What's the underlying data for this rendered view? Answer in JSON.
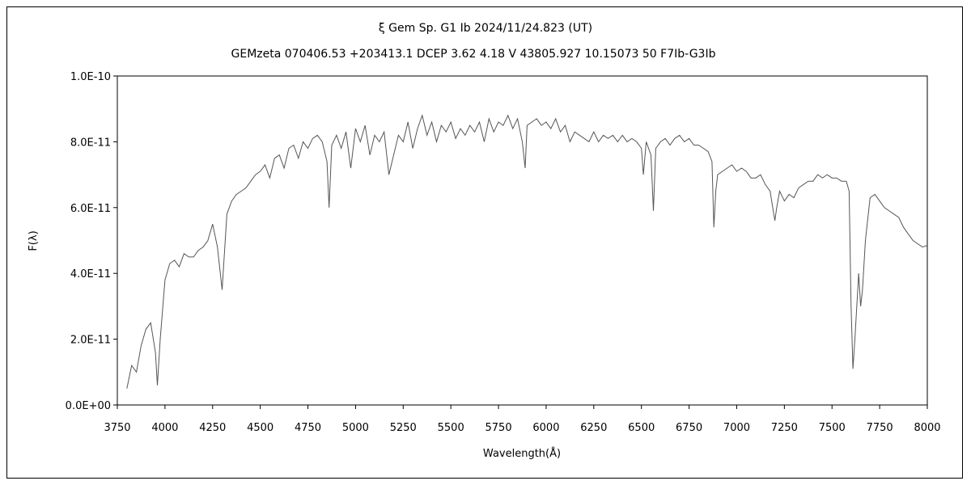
{
  "chart_data": {
    "type": "line",
    "title": "ξ  Gem    Sp. G1 Ib    2024/11/24.823 (UT)",
    "subtitle": "GEMzeta 070406.53 +203413.1  DCEP 3.62  4.18  V  43805.927  10.15073  50  F7Ib-G3Ib",
    "xlabel": "Wavelength(Å)",
    "ylabel": "F(λ)",
    "xlim": [
      3750,
      8000
    ],
    "ylim": [
      0,
      1e-10
    ],
    "x_ticks": [
      "3750",
      "4000",
      "4250",
      "4500",
      "4750",
      "5000",
      "5250",
      "5500",
      "5750",
      "6000",
      "6250",
      "6500",
      "6750",
      "7000",
      "7250",
      "7500",
      "7750",
      "8000"
    ],
    "y_ticks": [
      "0.0E+00",
      "2.0E-11",
      "4.0E-11",
      "6.0E-11",
      "8.0E-11",
      "1.0E-10"
    ],
    "grid": false,
    "line_color": "#555555",
    "x": [
      3800,
      3825,
      3850,
      3875,
      3900,
      3925,
      3950,
      3960,
      3975,
      4000,
      4025,
      4050,
      4075,
      4100,
      4125,
      4150,
      4175,
      4200,
      4225,
      4250,
      4275,
      4300,
      4325,
      4350,
      4375,
      4400,
      4425,
      4450,
      4475,
      4500,
      4525,
      4550,
      4575,
      4600,
      4625,
      4650,
      4675,
      4700,
      4725,
      4750,
      4775,
      4800,
      4825,
      4850,
      4861,
      4875,
      4900,
      4925,
      4950,
      4975,
      5000,
      5025,
      5050,
      5075,
      5100,
      5125,
      5150,
      5175,
      5200,
      5225,
      5250,
      5275,
      5300,
      5325,
      5350,
      5375,
      5400,
      5425,
      5450,
      5475,
      5500,
      5525,
      5550,
      5575,
      5600,
      5625,
      5650,
      5675,
      5700,
      5725,
      5750,
      5775,
      5800,
      5825,
      5850,
      5875,
      5890,
      5900,
      5925,
      5950,
      5975,
      6000,
      6025,
      6050,
      6075,
      6100,
      6125,
      6150,
      6175,
      6200,
      6225,
      6250,
      6275,
      6300,
      6325,
      6350,
      6375,
      6400,
      6425,
      6450,
      6475,
      6500,
      6510,
      6525,
      6550,
      6563,
      6575,
      6600,
      6625,
      6650,
      6675,
      6700,
      6725,
      6750,
      6775,
      6800,
      6825,
      6850,
      6870,
      6880,
      6890,
      6900,
      6925,
      6950,
      6975,
      7000,
      7025,
      7050,
      7075,
      7100,
      7125,
      7150,
      7175,
      7200,
      7210,
      7225,
      7250,
      7275,
      7300,
      7325,
      7350,
      7375,
      7400,
      7425,
      7450,
      7475,
      7500,
      7525,
      7550,
      7575,
      7590,
      7600,
      7610,
      7620,
      7640,
      7650,
      7660,
      7675,
      7700,
      7725,
      7750,
      7775,
      7800,
      7825,
      7850,
      7875,
      7900,
      7925,
      7950,
      7975,
      8000
    ],
    "y": [
      5e-12,
      1.2e-11,
      1e-11,
      1.8e-11,
      2.3e-11,
      2.5e-11,
      1.6e-11,
      6e-12,
      2e-11,
      3.8e-11,
      4.3e-11,
      4.4e-11,
      4.2e-11,
      4.6e-11,
      4.5e-11,
      4.5e-11,
      4.7e-11,
      4.8e-11,
      5e-11,
      5.5e-11,
      4.8e-11,
      3.5e-11,
      5.8e-11,
      6.2e-11,
      6.4e-11,
      6.5e-11,
      6.6e-11,
      6.8e-11,
      7e-11,
      7.1e-11,
      7.3e-11,
      6.9e-11,
      7.5e-11,
      7.6e-11,
      7.2e-11,
      7.8e-11,
      7.9e-11,
      7.5e-11,
      8e-11,
      7.8e-11,
      8.1e-11,
      8.2e-11,
      8e-11,
      7.4e-11,
      6e-11,
      7.9e-11,
      8.2e-11,
      7.8e-11,
      8.3e-11,
      7.2e-11,
      8.4e-11,
      8e-11,
      8.5e-11,
      7.6e-11,
      8.2e-11,
      8e-11,
      8.3e-11,
      7e-11,
      7.6e-11,
      8.2e-11,
      8e-11,
      8.6e-11,
      7.8e-11,
      8.4e-11,
      8.8e-11,
      8.2e-11,
      8.6e-11,
      8e-11,
      8.5e-11,
      8.3e-11,
      8.6e-11,
      8.1e-11,
      8.4e-11,
      8.2e-11,
      8.5e-11,
      8.3e-11,
      8.6e-11,
      8e-11,
      8.7e-11,
      8.3e-11,
      8.6e-11,
      8.5e-11,
      8.8e-11,
      8.4e-11,
      8.7e-11,
      8e-11,
      7.2e-11,
      8.5e-11,
      8.6e-11,
      8.7e-11,
      8.5e-11,
      8.6e-11,
      8.4e-11,
      8.7e-11,
      8.3e-11,
      8.5e-11,
      8e-11,
      8.3e-11,
      8.2e-11,
      8.1e-11,
      8e-11,
      8.3e-11,
      8e-11,
      8.2e-11,
      8.1e-11,
      8.2e-11,
      8e-11,
      8.2e-11,
      8e-11,
      8.1e-11,
      8e-11,
      7.8e-11,
      7e-11,
      8e-11,
      7.6e-11,
      5.9e-11,
      7.8e-11,
      8e-11,
      8.1e-11,
      7.9e-11,
      8.1e-11,
      8.2e-11,
      8e-11,
      8.1e-11,
      7.9e-11,
      7.9e-11,
      7.8e-11,
      7.7e-11,
      7.4e-11,
      5.4e-11,
      6.5e-11,
      7e-11,
      7.1e-11,
      7.2e-11,
      7.3e-11,
      7.1e-11,
      7.2e-11,
      7.1e-11,
      6.9e-11,
      6.9e-11,
      7e-11,
      6.7e-11,
      6.5e-11,
      5.6e-11,
      6e-11,
      6.5e-11,
      6.2e-11,
      6.4e-11,
      6.3e-11,
      6.6e-11,
      6.7e-11,
      6.8e-11,
      6.8e-11,
      7e-11,
      6.9e-11,
      7e-11,
      6.9e-11,
      6.9e-11,
      6.8e-11,
      6.8e-11,
      6.5e-11,
      3e-11,
      1.1e-11,
      2e-11,
      4e-11,
      3e-11,
      3.5e-11,
      5e-11,
      6.3e-11,
      6.4e-11,
      6.2e-11,
      6e-11,
      5.9e-11,
      5.8e-11,
      5.7e-11,
      5.4e-11,
      5.2e-11,
      5e-11,
      4.9e-11,
      4.8e-11,
      4.85e-11
    ]
  }
}
